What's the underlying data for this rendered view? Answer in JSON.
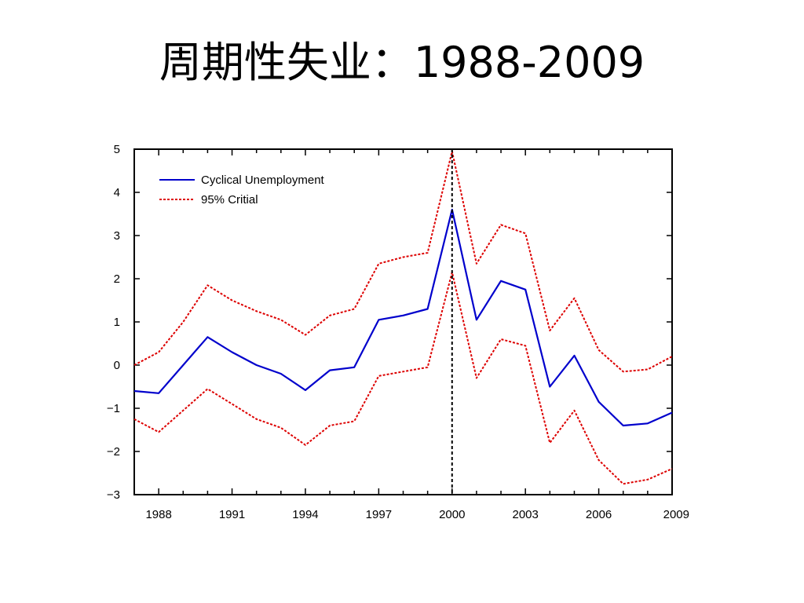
{
  "slide": {
    "title": "周期性失业：1988-2009"
  },
  "chart_data": {
    "type": "line",
    "title": "",
    "xlabel": "",
    "ylabel": "",
    "xlim": [
      1987,
      2009
    ],
    "ylim": [
      -3,
      5
    ],
    "x_ticks": [
      1988,
      1991,
      1994,
      1997,
      2000,
      2003,
      2006,
      2009
    ],
    "y_ticks": [
      -3,
      -2,
      -1,
      0,
      1,
      2,
      3,
      4,
      5
    ],
    "grid": false,
    "legend_position": "top-left",
    "vertical_marker": {
      "x": 2000,
      "style": "dashed",
      "color": "#000000"
    },
    "x": [
      1987,
      1988,
      1989,
      1990,
      1991,
      1992,
      1993,
      1994,
      1995,
      1996,
      1997,
      1998,
      1999,
      2000,
      2001,
      2002,
      2003,
      2004,
      2005,
      2006,
      2007,
      2008,
      2009
    ],
    "series": [
      {
        "name": "Cyclical Unemployment",
        "color": "#0000cc",
        "style": "solid",
        "values": [
          -0.6,
          -0.65,
          0.0,
          0.65,
          0.3,
          0.0,
          -0.2,
          -0.58,
          -0.12,
          -0.05,
          1.05,
          1.15,
          1.3,
          3.6,
          1.05,
          1.95,
          1.75,
          -0.5,
          0.22,
          -0.85,
          -1.4,
          -1.35,
          -1.1
        ]
      },
      {
        "name": "95% Critial",
        "color": "#dd0000",
        "style": "dashed",
        "values": [
          0.0,
          0.3,
          1.0,
          1.85,
          1.5,
          1.25,
          1.05,
          0.7,
          1.15,
          1.3,
          2.35,
          2.5,
          2.6,
          4.95,
          2.35,
          3.25,
          3.05,
          0.8,
          1.55,
          0.35,
          -0.15,
          -0.1,
          0.2
        ]
      },
      {
        "name": "",
        "color": "#dd0000",
        "style": "dashed",
        "values": [
          -1.25,
          -1.55,
          -1.05,
          -0.55,
          -0.9,
          -1.25,
          -1.45,
          -1.85,
          -1.4,
          -1.3,
          -0.25,
          -0.15,
          -0.05,
          2.15,
          -0.3,
          0.6,
          0.45,
          -1.8,
          -1.05,
          -2.2,
          -2.75,
          -2.65,
          -2.4
        ]
      }
    ]
  }
}
